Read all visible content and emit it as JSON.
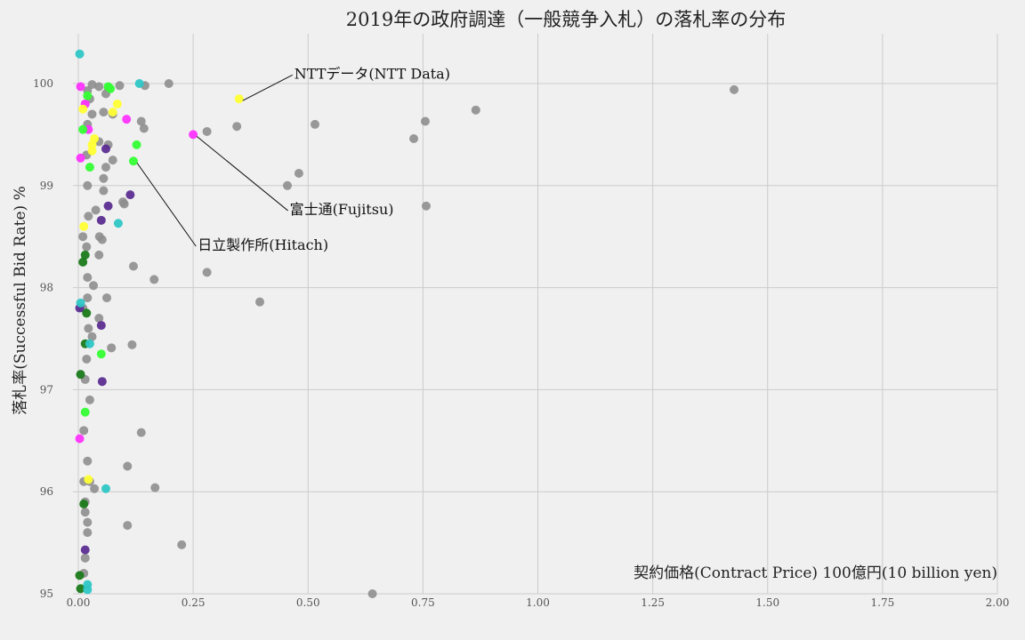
{
  "chart_data": {
    "type": "scatter",
    "title": "2019年の政府調達（一般競争入札）の落札率の分布",
    "xlabel": "契約価格(Contract Price)  100億円(10 billion yen)",
    "ylabel": "落札率(Successful Bid Rate) %",
    "xlim": [
      0,
      2
    ],
    "ylim": [
      95,
      100.4
    ],
    "x_ticks": [
      "0.00",
      "0.25",
      "0.50",
      "0.75",
      "1.00",
      "1.25",
      "1.50",
      "1.75",
      "2.00"
    ],
    "y_ticks": [
      "95",
      "96",
      "97",
      "98",
      "99",
      "100"
    ],
    "grid": true,
    "colors": {
      "background": "#f0f0f0",
      "other": "#8e8e8e",
      "ntt_data": "#ffff33",
      "fujitsu": "#ff33ff",
      "hitachi": "#33ff33",
      "cyan": "#2ec6c6",
      "purple": "#5c2d91",
      "green": "#1a7a1a"
    },
    "annotations": [
      {
        "text": "NTTデータ(NTT Data)",
        "point": [
          0.35,
          99.85
        ],
        "text_at": [
          0.47,
          100.05
        ]
      },
      {
        "text": "富士通(Fujitsu)",
        "point": [
          0.25,
          99.5
        ],
        "text_at": [
          0.46,
          98.72
        ]
      },
      {
        "text": "日立製作所(Hitach)",
        "point": [
          0.12,
          99.24
        ],
        "text_at": [
          0.26,
          98.37
        ]
      }
    ],
    "series": [
      {
        "group": "other",
        "points": [
          [
            0.64,
            95.0
          ],
          [
            0.225,
            95.48
          ],
          [
            0.107,
            95.67
          ],
          [
            0.167,
            96.04
          ],
          [
            0.107,
            96.25
          ],
          [
            0.137,
            96.58
          ],
          [
            0.117,
            97.44
          ],
          [
            0.072,
            97.41
          ],
          [
            0.045,
            97.7
          ],
          [
            0.03,
            97.52
          ],
          [
            0.395,
            97.86
          ],
          [
            0.062,
            97.9
          ],
          [
            0.033,
            98.02
          ],
          [
            0.165,
            98.08
          ],
          [
            0.28,
            98.15
          ],
          [
            0.12,
            98.21
          ],
          [
            0.045,
            98.32
          ],
          [
            0.052,
            98.47
          ],
          [
            0.046,
            98.5
          ],
          [
            0.038,
            98.76
          ],
          [
            0.1,
            98.82
          ],
          [
            0.097,
            98.84
          ],
          [
            0.055,
            98.95
          ],
          [
            0.055,
            99.07
          ],
          [
            0.455,
            99.0
          ],
          [
            0.48,
            99.12
          ],
          [
            0.075,
            99.25
          ],
          [
            0.06,
            99.18
          ],
          [
            0.065,
            99.4
          ],
          [
            0.045,
            99.43
          ],
          [
            0.28,
            99.53
          ],
          [
            0.345,
            99.58
          ],
          [
            0.515,
            99.6
          ],
          [
            0.137,
            99.63
          ],
          [
            0.143,
            99.56
          ],
          [
            0.03,
            99.7
          ],
          [
            0.055,
            99.72
          ],
          [
            0.075,
            99.7
          ],
          [
            0.73,
            99.46
          ],
          [
            0.755,
            99.63
          ],
          [
            0.757,
            98.8
          ],
          [
            0.865,
            99.74
          ],
          [
            0.06,
            99.9
          ],
          [
            0.045,
            99.97
          ],
          [
            0.065,
            99.96
          ],
          [
            0.09,
            99.98
          ],
          [
            0.145,
            99.98
          ],
          [
            0.197,
            100.0
          ],
          [
            0.03,
            99.99
          ],
          [
            0.02,
            99.93
          ],
          [
            0.025,
            99.85
          ],
          [
            1.427,
            99.94
          ],
          [
            0.025,
            96.1
          ],
          [
            0.035,
            96.03
          ],
          [
            0.02,
            96.3
          ],
          [
            0.015,
            95.9
          ],
          [
            0.02,
            95.7
          ],
          [
            0.015,
            95.35
          ],
          [
            0.02,
            95.6
          ],
          [
            0.015,
            95.8
          ],
          [
            0.025,
            96.9
          ],
          [
            0.015,
            97.1
          ],
          [
            0.018,
            97.3
          ],
          [
            0.022,
            97.6
          ],
          [
            0.02,
            97.9
          ],
          [
            0.02,
            98.1
          ],
          [
            0.018,
            98.4
          ],
          [
            0.022,
            98.7
          ],
          [
            0.02,
            99.0
          ],
          [
            0.018,
            99.3
          ],
          [
            0.02,
            99.6
          ],
          [
            0.015,
            99.8
          ],
          [
            0.012,
            96.6
          ],
          [
            0.012,
            96.1
          ],
          [
            0.012,
            95.2
          ],
          [
            0.01,
            97.8
          ],
          [
            0.01,
            98.5
          ]
        ]
      },
      {
        "group": "ntt_data",
        "points": [
          [
            0.35,
            99.85
          ],
          [
            0.03,
            99.4
          ],
          [
            0.035,
            99.46
          ],
          [
            0.03,
            99.34
          ],
          [
            0.085,
            99.8
          ],
          [
            0.075,
            99.72
          ],
          [
            0.012,
            98.6
          ],
          [
            0.022,
            96.12
          ],
          [
            0.01,
            99.75
          ]
        ]
      },
      {
        "group": "fujitsu",
        "points": [
          [
            0.25,
            99.5
          ],
          [
            0.105,
            99.65
          ],
          [
            0.015,
            99.8
          ],
          [
            0.005,
            99.97
          ],
          [
            0.022,
            99.55
          ],
          [
            0.005,
            99.27
          ],
          [
            0.003,
            96.52
          ]
        ]
      },
      {
        "group": "hitachi",
        "points": [
          [
            0.12,
            99.24
          ],
          [
            0.127,
            99.4
          ],
          [
            0.05,
            97.35
          ],
          [
            0.065,
            99.97
          ],
          [
            0.07,
            99.95
          ],
          [
            0.02,
            99.88
          ],
          [
            0.01,
            99.55
          ],
          [
            0.025,
            99.18
          ],
          [
            0.015,
            96.78
          ]
        ]
      },
      {
        "group": "cyan",
        "points": [
          [
            0.003,
            100.29
          ],
          [
            0.133,
            100.0
          ],
          [
            0.087,
            98.63
          ],
          [
            0.06,
            96.03
          ],
          [
            0.02,
            95.09
          ],
          [
            0.02,
            95.04
          ],
          [
            0.025,
            97.45
          ],
          [
            0.005,
            97.85
          ]
        ]
      },
      {
        "group": "purple",
        "points": [
          [
            0.113,
            98.91
          ],
          [
            0.065,
            98.8
          ],
          [
            0.05,
            98.66
          ],
          [
            0.05,
            97.63
          ],
          [
            0.052,
            97.08
          ],
          [
            0.06,
            99.36
          ],
          [
            0.015,
            95.43
          ],
          [
            0.003,
            97.8
          ]
        ]
      },
      {
        "group": "green",
        "points": [
          [
            0.015,
            98.32
          ],
          [
            0.018,
            97.75
          ],
          [
            0.015,
            97.45
          ],
          [
            0.005,
            97.15
          ],
          [
            0.012,
            95.88
          ],
          [
            0.003,
            95.18
          ],
          [
            0.005,
            95.05
          ],
          [
            0.01,
            98.25
          ]
        ]
      }
    ]
  }
}
